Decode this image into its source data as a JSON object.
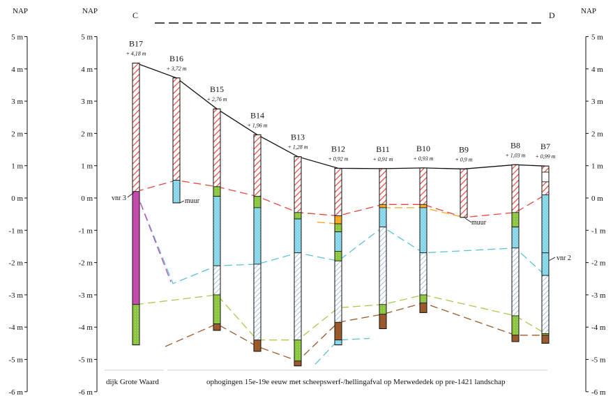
{
  "title": {
    "left": "C",
    "right": "D"
  },
  "axis": {
    "label": "NAP",
    "unit": "m",
    "ticks": [
      {
        "value": 5,
        "label": "5 m"
      },
      {
        "value": 4,
        "label": "4 m"
      },
      {
        "value": 3,
        "label": "3 m"
      },
      {
        "value": 2,
        "label": "2 m"
      },
      {
        "value": 1,
        "label": "1 m"
      },
      {
        "value": 0,
        "label": "0 m"
      },
      {
        "value": -1,
        "label": "-1 m"
      },
      {
        "value": -2,
        "label": "-2 m"
      },
      {
        "value": -3,
        "label": "-3 m"
      },
      {
        "value": -4,
        "label": "-4 m"
      },
      {
        "value": -5,
        "label": "-5 m"
      },
      {
        "value": -6,
        "label": "-6 m"
      }
    ]
  },
  "colors": {
    "red": "#e8453c",
    "cyan": "#7ed3e6",
    "blue_hatch": "#8fb3d9",
    "green": "#8cc63f",
    "brown": "#9b5a2c",
    "magenta": "#c54ab0",
    "orange": "#f5a623",
    "lime": "#a9c94a",
    "surface": "#111111"
  },
  "boreholes": [
    {
      "name": "B17",
      "elevation": "+ 4,18 m",
      "top": 4.18,
      "bottom": -4.55,
      "layers": [
        [
          4.18,
          0.2,
          "red"
        ],
        [
          0.2,
          -3.3,
          "magenta"
        ],
        [
          -3.3,
          -4.55,
          "green"
        ]
      ]
    },
    {
      "name": "B16",
      "elevation": "+ 3,72 m",
      "top": 3.72,
      "bottom": -0.15,
      "layers": [
        [
          3.72,
          0.55,
          "red"
        ],
        [
          0.55,
          -0.15,
          "cyan"
        ]
      ]
    },
    {
      "name": "B15",
      "elevation": "+ 2,76 m",
      "top": 2.76,
      "bottom": -4.1,
      "layers": [
        [
          2.76,
          0.35,
          "red"
        ],
        [
          0.35,
          0.05,
          "green"
        ],
        [
          0.05,
          -2.1,
          "cyan"
        ],
        [
          -2.1,
          -3.0,
          "blue"
        ],
        [
          -3.0,
          -3.9,
          "green"
        ],
        [
          -3.9,
          -4.1,
          "brown"
        ]
      ]
    },
    {
      "name": "B14",
      "elevation": "+ 1,96 m",
      "top": 1.96,
      "bottom": -4.75,
      "layers": [
        [
          1.96,
          0.05,
          "red"
        ],
        [
          0.05,
          -0.3,
          "green"
        ],
        [
          -0.3,
          -2.05,
          "cyan"
        ],
        [
          -2.05,
          -4.4,
          "blue"
        ],
        [
          -4.4,
          -4.75,
          "brown"
        ]
      ]
    },
    {
      "name": "B13",
      "elevation": "+ 1,28 m",
      "top": 1.28,
      "bottom": -5.2,
      "layers": [
        [
          1.28,
          -0.45,
          "red"
        ],
        [
          -0.45,
          -0.65,
          "green"
        ],
        [
          -0.65,
          -1.7,
          "cyan"
        ],
        [
          -1.7,
          -4.4,
          "blue"
        ],
        [
          -4.4,
          -5.05,
          "green"
        ],
        [
          -5.05,
          -5.2,
          "brown"
        ]
      ]
    },
    {
      "name": "B12",
      "elevation": "+ 0,92 m",
      "top": 0.92,
      "bottom": -4.55,
      "layers": [
        [
          0.92,
          -0.55,
          "red"
        ],
        [
          -0.55,
          -0.8,
          "orange"
        ],
        [
          -0.8,
          -1.05,
          "green"
        ],
        [
          -1.05,
          -1.65,
          "cyan"
        ],
        [
          -1.65,
          -1.95,
          "green"
        ],
        [
          -1.95,
          -3.85,
          "blue"
        ],
        [
          -3.85,
          -4.4,
          "brown"
        ],
        [
          -4.4,
          -4.55,
          "cyan"
        ]
      ]
    },
    {
      "name": "B11",
      "elevation": "+ 0,91 m",
      "top": 0.91,
      "bottom": -4.05,
      "layers": [
        [
          0.91,
          -0.2,
          "red"
        ],
        [
          -0.2,
          -0.3,
          "orange"
        ],
        [
          -0.3,
          -0.9,
          "cyan"
        ],
        [
          -0.9,
          -3.3,
          "blue"
        ],
        [
          -3.3,
          -3.6,
          "green"
        ],
        [
          -3.6,
          -4.05,
          "brown"
        ]
      ]
    },
    {
      "name": "B10",
      "elevation": "+ 0,93 m",
      "top": 0.93,
      "bottom": -3.55,
      "layers": [
        [
          0.93,
          -0.2,
          "red"
        ],
        [
          -0.2,
          -0.3,
          "orange"
        ],
        [
          -0.3,
          -1.7,
          "cyan"
        ],
        [
          -1.7,
          -3.0,
          "blue"
        ],
        [
          -3.0,
          -3.25,
          "green"
        ],
        [
          -3.25,
          -3.55,
          "brown"
        ]
      ]
    },
    {
      "name": "B9",
      "elevation": "+ 0,9 m",
      "top": 0.9,
      "bottom": -0.6,
      "layers": [
        [
          0.9,
          -0.6,
          "red"
        ]
      ]
    },
    {
      "name": "B8",
      "elevation": "+ 1,03 m",
      "top": 1.03,
      "bottom": -4.45,
      "layers": [
        [
          1.03,
          -0.45,
          "red"
        ],
        [
          -0.45,
          -0.9,
          "green"
        ],
        [
          -0.9,
          -1.55,
          "cyan"
        ],
        [
          -1.55,
          -3.65,
          "blue"
        ],
        [
          -3.65,
          -4.25,
          "green"
        ],
        [
          -4.25,
          -4.45,
          "brown"
        ]
      ]
    },
    {
      "name": "B7",
      "elevation": "+ 0,99 m",
      "top": 0.99,
      "bottom": -4.5,
      "layers": [
        [
          0.99,
          0.8,
          "red"
        ],
        [
          0.8,
          0.5,
          "white"
        ],
        [
          0.5,
          0.1,
          "red"
        ],
        [
          0.1,
          -1.7,
          "cyan"
        ],
        [
          -1.7,
          -2.4,
          "cyan"
        ],
        [
          -2.4,
          -4.2,
          "blue"
        ],
        [
          -4.2,
          -4.25,
          "green"
        ],
        [
          -4.25,
          -4.5,
          "brown"
        ]
      ]
    }
  ],
  "annotations": {
    "vnr3": "vnr 3",
    "muur_left": "muur",
    "muur_right": "muur",
    "vnr2": "vnr 2"
  },
  "footer": {
    "left": "dijk Grote Waard",
    "right": "ophogingen 15e-19e eeuw met scheepswerf-/hellingafval op Merwededek op pre-1421 landschap"
  }
}
